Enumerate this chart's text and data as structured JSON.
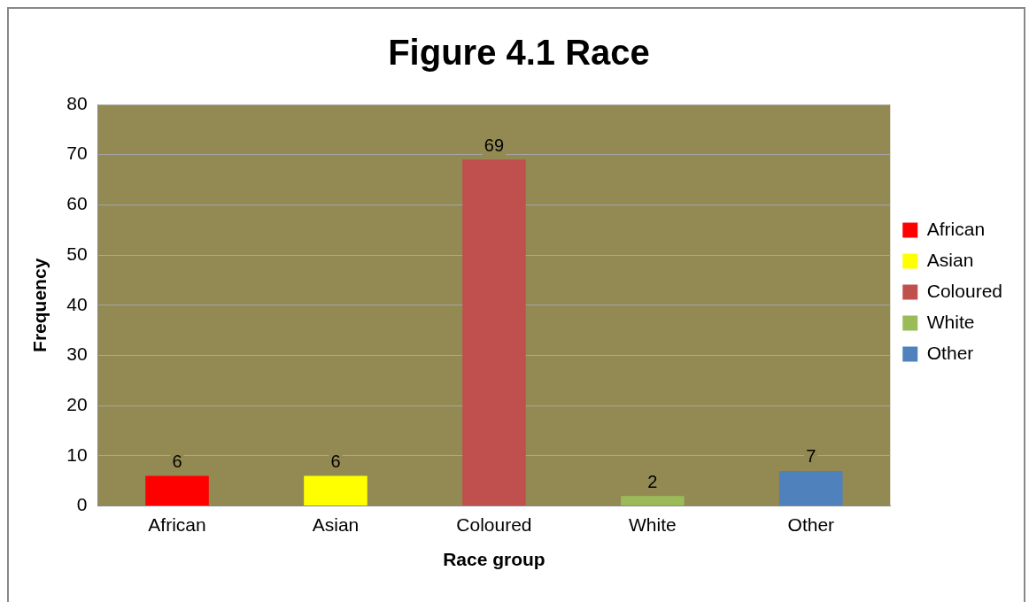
{
  "chart_data": {
    "type": "bar",
    "title": "Figure 4.1 Race",
    "xlabel": "Race group",
    "ylabel": "Frequency",
    "categories": [
      "African",
      "Asian",
      "Coloured",
      "White",
      "Other"
    ],
    "series": [
      {
        "name": "African",
        "color": "#ff0000",
        "values": [
          6,
          null,
          null,
          null,
          null
        ]
      },
      {
        "name": "Asian",
        "color": "#ffff00",
        "values": [
          null,
          6,
          null,
          null,
          null
        ]
      },
      {
        "name": "Coloured",
        "color": "#c0504d",
        "values": [
          null,
          null,
          69,
          null,
          null
        ]
      },
      {
        "name": "White",
        "color": "#9bbb59",
        "values": [
          null,
          null,
          null,
          2,
          null
        ]
      },
      {
        "name": "Other",
        "color": "#4f81bd",
        "values": [
          null,
          null,
          null,
          null,
          7
        ]
      }
    ],
    "ylim": [
      0,
      80
    ],
    "yticks": [
      0,
      10,
      20,
      30,
      40,
      50,
      60,
      70,
      80
    ],
    "grid": "y",
    "legend": "right",
    "data_labels": true
  }
}
